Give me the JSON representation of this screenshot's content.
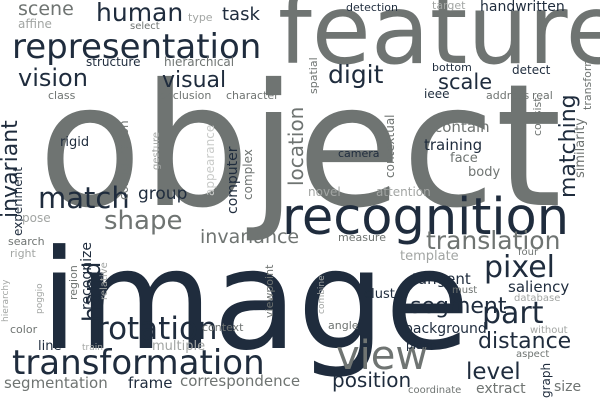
{
  "colors": {
    "background": "#ffffff",
    "dark": "#1f2c3d",
    "gray": "#6f7472",
    "light": "#a2a5a3",
    "faint": "#c9cbc9"
  },
  "words": {
    "object": "object",
    "image": "image",
    "feature": "feature",
    "recognition": "recognition",
    "representation": "representation",
    "transformation": "transformation",
    "view": "view",
    "rotation": "rotation",
    "match": "match",
    "pixel": "pixel",
    "part": "part",
    "translation": "translation",
    "human": "human",
    "vision": "vision",
    "visual": "visual",
    "digit": "digit",
    "shape": "shape",
    "invariance": "invariance",
    "segment": "segment",
    "distance": "distance",
    "position": "position",
    "level": "level",
    "scale": "scale",
    "task": "task",
    "handwritten": "handwritten",
    "scene": "scene",
    "matching": "matching",
    "invariant": "invariant",
    "hand": "hand",
    "location": "location",
    "group": "group",
    "computer": "computer",
    "segmentation": "segmentation",
    "correspondence": "correspondence",
    "frame": "frame",
    "training": "training",
    "contain": "contain",
    "saliency": "saliency",
    "tangent": "tangent",
    "background": "background",
    "similarity": "similarity",
    "cluster": "cluster",
    "recognize": "recognize",
    "template": "template",
    "structure": "structure",
    "hierarchical": "hierarchical",
    "experiment": "experiment",
    "configuration": "configuration",
    "complex": "complex",
    "appearance": "appearance",
    "body": "body",
    "face": "face",
    "camera": "camera",
    "contextual": "contextual",
    "attention": "attention",
    "novel": "novel",
    "measure": "measure",
    "region": "region",
    "search": "search",
    "pose": "pose",
    "rigid": "rigid",
    "class": "class",
    "occlusion": "occlusion",
    "character": "character",
    "address": "address",
    "detection": "detection",
    "target": "target",
    "type": "type",
    "select": "select",
    "affine": "affine",
    "spatial": "spatial",
    "bottom": "bottom",
    "detect": "detect",
    "transform": "transform",
    "ieee": "ieee",
    "real": "real",
    "consist": "consist",
    "viewpoint": "viewpoint",
    "gesture": "gesture",
    "relative": "relative",
    "poggio": "poggio",
    "hierarchy": "hierarchy",
    "right": "right",
    "color": "color",
    "line": "line",
    "train": "train",
    "multiple": "multiple",
    "context": "context",
    "angle": "angle",
    "combine": "combine",
    "plane": "plane",
    "must": "must",
    "four": "four",
    "database": "database",
    "without": "without",
    "aspect": "aspect",
    "graph": "graph",
    "extract": "extract",
    "coordinate": "coordinate",
    "size": "size"
  }
}
